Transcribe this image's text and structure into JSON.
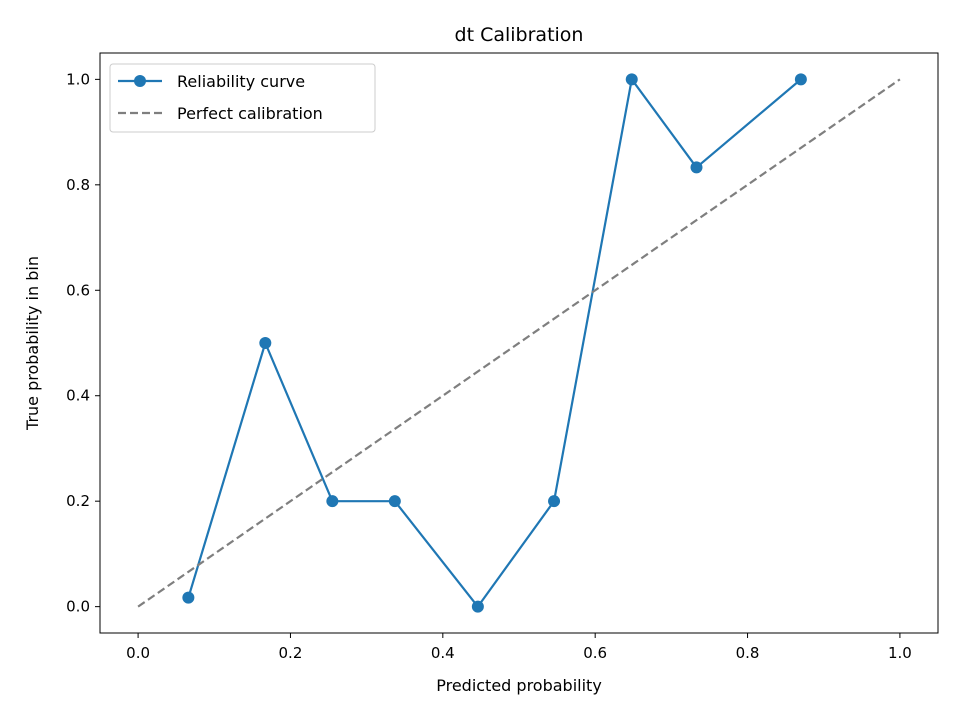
{
  "chart_data": {
    "type": "line",
    "title": "dt Calibration",
    "xlabel": "Predicted probability",
    "ylabel": "True probability in bin",
    "xlim": [
      -0.05,
      1.05
    ],
    "ylim": [
      -0.05,
      1.05
    ],
    "xticks": [
      "0.0",
      "0.2",
      "0.4",
      "0.6",
      "0.8",
      "1.0"
    ],
    "yticks": [
      "0.0",
      "0.2",
      "0.4",
      "0.6",
      "0.8",
      "1.0"
    ],
    "grid": false,
    "legend_position": "top-left",
    "series": [
      {
        "name": "Reliability curve",
        "style": "solid-with-markers",
        "color": "#1f77b4",
        "x": [
          0.066,
          0.167,
          0.255,
          0.337,
          0.446,
          0.546,
          0.648,
          0.733,
          0.87
        ],
        "y": [
          0.017,
          0.5,
          0.2,
          0.2,
          0.0,
          0.2,
          1.0,
          0.833,
          1.0
        ]
      },
      {
        "name": "Perfect calibration",
        "style": "dashed",
        "color": "#7f7f7f",
        "x": [
          0,
          1
        ],
        "y": [
          0,
          1
        ]
      }
    ]
  }
}
